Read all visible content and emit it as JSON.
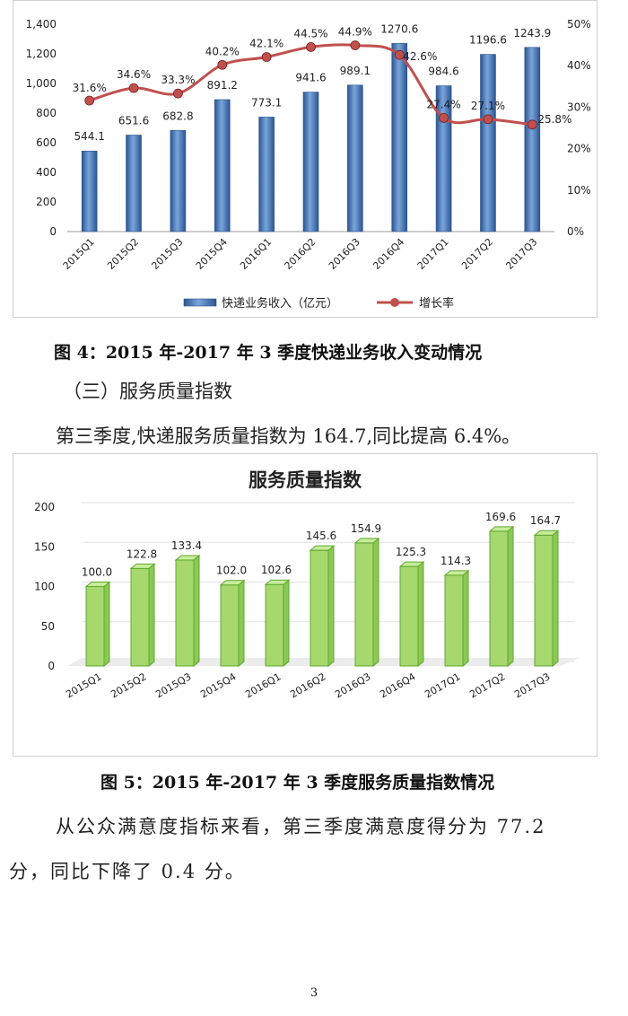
{
  "figure4": {
    "caption": "图 4：2015 年-2017 年 3 季度快递业务收入变动情况",
    "chart_data": {
      "type": "bar",
      "categories": [
        "2015Q1",
        "2015Q2",
        "2015Q3",
        "2015Q4",
        "2016Q1",
        "2016Q2",
        "2016Q3",
        "2016Q4",
        "2017Q1",
        "2017Q2",
        "2017Q3"
      ],
      "series": [
        {
          "name": "快递业务收入（亿元）",
          "type": "bar",
          "axis": "left",
          "values": [
            544.1,
            651.6,
            682.8,
            891.2,
            773.1,
            941.6,
            989.1,
            1270.6,
            984.6,
            1196.6,
            1243.9
          ],
          "labels": [
            "544.1",
            "651.6",
            "682.8",
            "891.2",
            "773.1",
            "941.6",
            "989.1",
            "1270.6",
            "984.6",
            "1196.6",
            "1243.9"
          ]
        },
        {
          "name": "增长率",
          "type": "line",
          "axis": "right",
          "values": [
            31.6,
            34.6,
            33.3,
            40.2,
            42.1,
            44.5,
            44.9,
            42.6,
            27.4,
            27.1,
            25.8
          ],
          "labels": [
            "31.6%",
            "34.6%",
            "33.3%",
            "40.2%",
            "42.1%",
            "44.5%",
            "44.9%",
            "42.6%",
            "27.4%",
            "27.1%",
            "25.8%"
          ]
        }
      ],
      "y_left": {
        "min": 0,
        "max": 1400,
        "ticks": [
          "0",
          "200",
          "400",
          "600",
          "800",
          "1,000",
          "1,200",
          "1,400"
        ]
      },
      "y_right": {
        "min": 0,
        "max": 50,
        "ticks": [
          "0%",
          "10%",
          "20%",
          "30%",
          "40%",
          "50%"
        ]
      },
      "legend_position": "bottom",
      "colors": {
        "bar": "#4f81bd",
        "bar_dark": "#2c5590",
        "line": "#c0504d",
        "marker": "#c0504d"
      }
    }
  },
  "section3_heading": "（三）服务质量指数",
  "paragraph1": "第三季度,快递服务质量指数为 164.7,同比提高 6.4%。",
  "figure5": {
    "caption": "图 5：2015 年-2017 年 3 季度服务质量指数情况",
    "chart_data": {
      "type": "bar",
      "title": "服务质量指数",
      "categories": [
        "2015Q1",
        "2015Q2",
        "2015Q3",
        "2015Q4",
        "2016Q1",
        "2016Q2",
        "2016Q3",
        "2016Q4",
        "2017Q1",
        "2017Q2",
        "2017Q3"
      ],
      "values": [
        100.0,
        122.8,
        133.4,
        102.0,
        102.6,
        145.6,
        154.9,
        125.3,
        114.3,
        169.6,
        164.7
      ],
      "labels": [
        "100.0",
        "122.8",
        "133.4",
        "102.0",
        "102.6",
        "145.6",
        "154.9",
        "125.3",
        "114.3",
        "169.6",
        "164.7"
      ],
      "y": {
        "min": 0,
        "max": 200,
        "ticks": [
          "0",
          "50",
          "100",
          "150",
          "200"
        ]
      },
      "colors": {
        "bar": "#a6d86e",
        "bar_edge": "#5fa82c",
        "bar_top": "#c8ec9b"
      }
    }
  },
  "paragraph2_line1": "从公众满意度指标来看，第三季度满意度得分为 77.2",
  "paragraph2_line2": "分，同比下降了 0.4 分。",
  "page_number": "3"
}
